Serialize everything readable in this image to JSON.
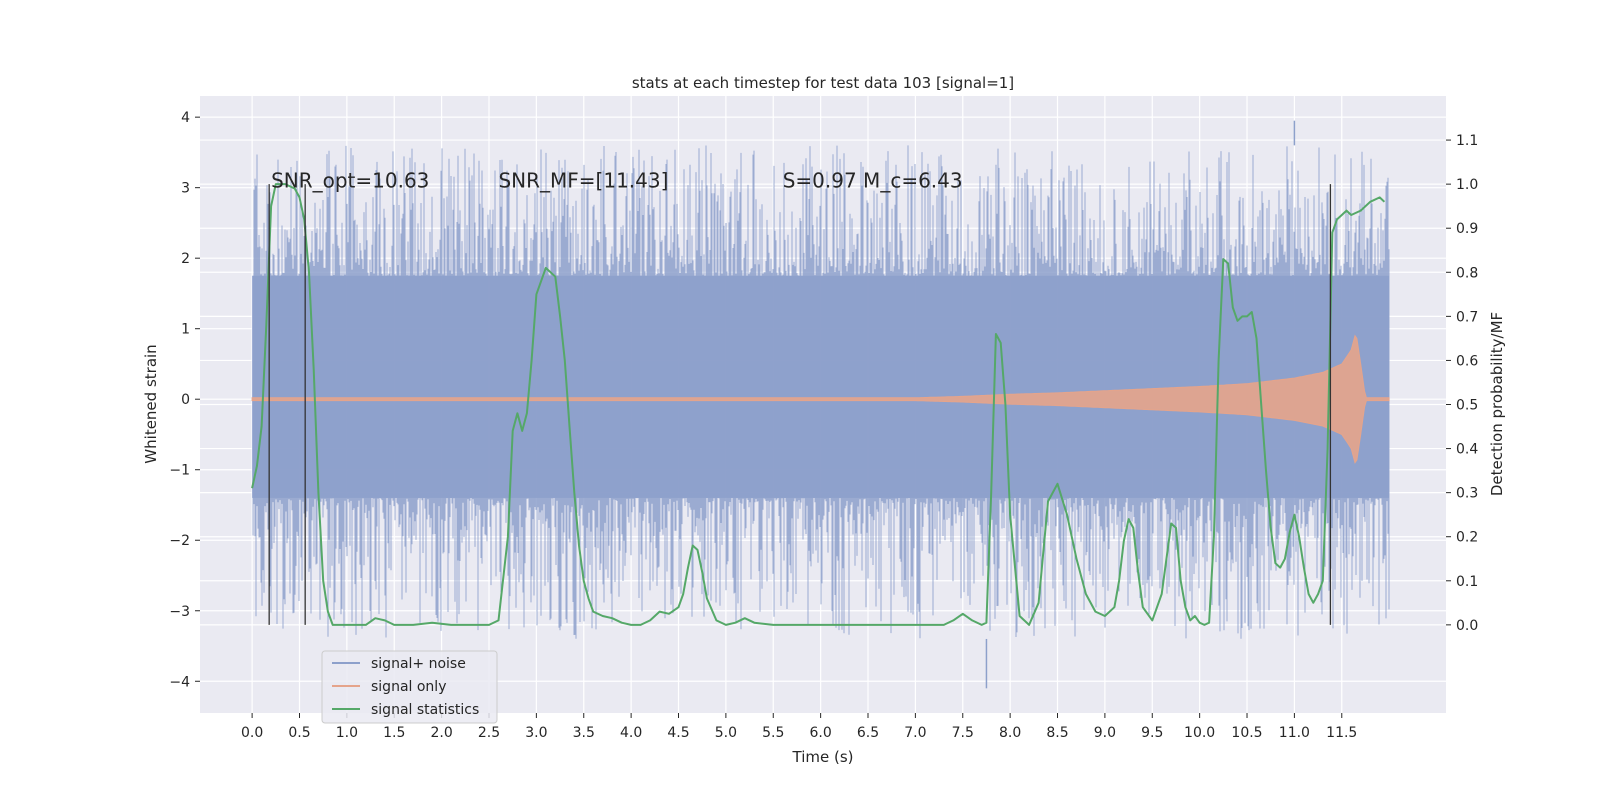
{
  "chart_data": {
    "type": "line",
    "title": "stats at each timestep for test data 103 [signal=1]",
    "xlabel": "Time (s)",
    "ylabel_left": "Whitened strain",
    "ylabel_right": "Detection probability/MF",
    "xlim": [
      -0.55,
      12.6
    ],
    "ylim_left": [
      -4.45,
      4.3
    ],
    "ylim_right": [
      -0.2,
      1.2
    ],
    "x_ticks": [
      0.0,
      0.5,
      1.0,
      1.5,
      2.0,
      2.5,
      3.0,
      3.5,
      4.0,
      4.5,
      5.0,
      5.5,
      6.0,
      6.5,
      7.0,
      7.5,
      8.0,
      8.5,
      9.0,
      9.5,
      10.0,
      10.5,
      11.0,
      11.5
    ],
    "x_tick_labels": [
      "0.0",
      "0.5",
      "1.0",
      "1.5",
      "2.0",
      "2.5",
      "3.0",
      "3.5",
      "4.0",
      "4.5",
      "5.0",
      "5.5",
      "6.0",
      "6.5",
      "7.0",
      "7.5",
      "8.0",
      "8.5",
      "9.0",
      "9.5",
      "10.0",
      "10.5",
      "11.0",
      "11.5"
    ],
    "y_left_ticks": [
      -4,
      -3,
      -2,
      -1,
      0,
      1,
      2,
      3,
      4
    ],
    "y_left_tick_labels": [
      "−4",
      "−3",
      "−2",
      "−1",
      "0",
      "1",
      "2",
      "3",
      "4"
    ],
    "y_right_ticks": [
      0.0,
      0.1,
      0.2,
      0.3,
      0.4,
      0.5,
      0.6,
      0.7,
      0.8,
      0.9,
      1.0,
      1.1
    ],
    "y_right_tick_labels": [
      "0.0",
      "0.1",
      "0.2",
      "0.3",
      "0.4",
      "0.5",
      "0.6",
      "0.7",
      "0.8",
      "0.9",
      "1.0",
      "1.1"
    ],
    "grid": true,
    "legend_position": "lower-left",
    "annotations": [
      {
        "id": "snr-opt",
        "text": "SNR_opt=10.63",
        "x": 0.2,
        "y": 3.0
      },
      {
        "id": "snr-mf",
        "text": "SNR_MF=[11.43]",
        "x": 2.6,
        "y": 3.0
      },
      {
        "id": "s-mc",
        "text": "S=0.97   M_c=6.43",
        "x": 5.6,
        "y": 3.0
      }
    ],
    "vertical_markers": [
      {
        "x": 0.18,
        "y_top": 3.05,
        "y_bottom": -3.2
      },
      {
        "x": 0.56,
        "y_top": 3.05,
        "y_bottom": -3.2
      },
      {
        "x": 11.38,
        "y_top": 3.05,
        "y_bottom": -3.2
      }
    ],
    "series": [
      {
        "name": "signal+ noise",
        "color": "#8da0cb",
        "axis": "left",
        "style": "noise-band",
        "x_range": [
          0.0,
          12.0
        ],
        "core_envelope": [
          -1.4,
          1.75
        ],
        "peak_envelope": [
          -3.4,
          3.6
        ],
        "max_value": 3.95,
        "min_value": -4.1
      },
      {
        "name": "signal only",
        "color": "#e5a48b",
        "axis": "left",
        "style": "chirp",
        "x": [
          0.0,
          7.0,
          7.5,
          8.0,
          8.5,
          9.0,
          9.5,
          10.0,
          10.5,
          11.0,
          11.3,
          11.5,
          11.6,
          11.65,
          11.7,
          11.75,
          12.0
        ],
        "amplitude": [
          0.02,
          0.02,
          0.04,
          0.07,
          0.09,
          0.12,
          0.15,
          0.18,
          0.22,
          0.3,
          0.38,
          0.5,
          0.7,
          0.95,
          0.5,
          0.02,
          0.02
        ]
      },
      {
        "name": "signal statistics",
        "color": "#55a868",
        "axis": "right",
        "style": "line",
        "x": [
          0.0,
          0.05,
          0.1,
          0.15,
          0.2,
          0.25,
          0.3,
          0.35,
          0.45,
          0.5,
          0.55,
          0.6,
          0.65,
          0.7,
          0.75,
          0.8,
          0.85,
          0.9,
          1.0,
          1.2,
          1.3,
          1.4,
          1.5,
          1.7,
          1.9,
          2.1,
          2.3,
          2.5,
          2.6,
          2.7,
          2.75,
          2.8,
          2.85,
          2.9,
          2.95,
          3.0,
          3.1,
          3.2,
          3.25,
          3.3,
          3.35,
          3.4,
          3.45,
          3.5,
          3.55,
          3.6,
          3.7,
          3.8,
          3.9,
          4.0,
          4.1,
          4.2,
          4.3,
          4.4,
          4.5,
          4.55,
          4.6,
          4.65,
          4.7,
          4.75,
          4.8,
          4.9,
          5.0,
          5.1,
          5.2,
          5.3,
          5.5,
          6.0,
          6.5,
          6.6,
          7.0,
          7.3,
          7.4,
          7.5,
          7.6,
          7.7,
          7.75,
          7.8,
          7.85,
          7.9,
          7.95,
          8.0,
          8.1,
          8.2,
          8.3,
          8.4,
          8.5,
          8.6,
          8.7,
          8.8,
          8.9,
          9.0,
          9.1,
          9.15,
          9.2,
          9.25,
          9.3,
          9.35,
          9.4,
          9.5,
          9.6,
          9.7,
          9.75,
          9.8,
          9.85,
          9.9,
          9.95,
          10.0,
          10.05,
          10.1,
          10.15,
          10.2,
          10.25,
          10.3,
          10.35,
          10.4,
          10.45,
          10.5,
          10.55,
          10.6,
          10.65,
          10.7,
          10.75,
          10.8,
          10.85,
          10.9,
          10.95,
          11.0,
          11.05,
          11.1,
          11.15,
          11.2,
          11.25,
          11.3,
          11.35,
          11.4,
          11.45,
          11.5,
          11.55,
          11.6,
          11.7,
          11.8,
          11.9,
          11.95
        ],
        "y": [
          0.31,
          0.36,
          0.45,
          0.68,
          0.95,
          1.0,
          1.0,
          1.0,
          0.99,
          0.97,
          0.92,
          0.8,
          0.58,
          0.3,
          0.1,
          0.03,
          0.0,
          0.0,
          0.0,
          0.0,
          0.015,
          0.01,
          0.0,
          0.0,
          0.005,
          0.0,
          0.0,
          0.0,
          0.01,
          0.2,
          0.44,
          0.48,
          0.44,
          0.48,
          0.6,
          0.75,
          0.81,
          0.79,
          0.7,
          0.6,
          0.45,
          0.3,
          0.18,
          0.1,
          0.06,
          0.03,
          0.02,
          0.015,
          0.005,
          0.0,
          0.0,
          0.01,
          0.03,
          0.025,
          0.04,
          0.07,
          0.13,
          0.18,
          0.17,
          0.12,
          0.06,
          0.01,
          0.0,
          0.005,
          0.015,
          0.005,
          0.0,
          0.0,
          0.0,
          0.0,
          0.0,
          0.0,
          0.01,
          0.025,
          0.01,
          0.0,
          0.005,
          0.3,
          0.66,
          0.64,
          0.5,
          0.25,
          0.02,
          0.0,
          0.05,
          0.28,
          0.32,
          0.25,
          0.15,
          0.07,
          0.03,
          0.02,
          0.04,
          0.1,
          0.19,
          0.24,
          0.22,
          0.12,
          0.04,
          0.01,
          0.07,
          0.23,
          0.22,
          0.1,
          0.04,
          0.01,
          0.02,
          0.005,
          0.0,
          0.005,
          0.2,
          0.6,
          0.83,
          0.82,
          0.72,
          0.69,
          0.7,
          0.7,
          0.71,
          0.65,
          0.5,
          0.35,
          0.22,
          0.14,
          0.13,
          0.15,
          0.21,
          0.25,
          0.2,
          0.13,
          0.07,
          0.05,
          0.07,
          0.1,
          0.4,
          0.89,
          0.92,
          0.93,
          0.94,
          0.93,
          0.94,
          0.96,
          0.97,
          0.96
        ]
      }
    ]
  }
}
